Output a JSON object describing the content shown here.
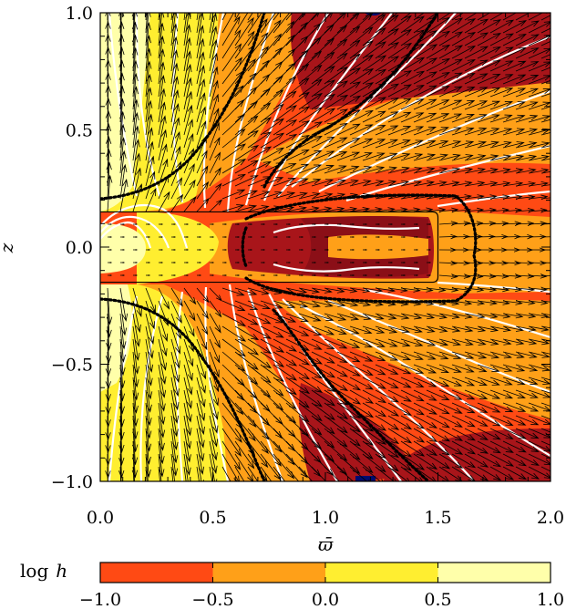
{
  "chart_data": {
    "type": "heatmap",
    "title": "",
    "xlabel": "ϖ̄",
    "ylabel": "z",
    "xlim": [
      0.0,
      2.0
    ],
    "ylim": [
      -1.0,
      1.0
    ],
    "x_ticks": [
      "0.0",
      "0.5",
      "1.0",
      "1.5",
      "2.0"
    ],
    "y_ticks": [
      "−1.0",
      "−0.5",
      "0.0",
      "0.5",
      "1.0"
    ],
    "x_tick_values": [
      0.0,
      0.5,
      1.0,
      1.5,
      2.0
    ],
    "y_tick_values": [
      -1.0,
      -0.5,
      0.0,
      0.5,
      1.0
    ],
    "colorbar": {
      "title": "log",
      "title_var": "h",
      "tick_values": [
        -1.0,
        -0.5,
        0.0,
        0.5,
        1.0
      ],
      "tick_labels": [
        "−1.0",
        "−0.5",
        "0.0",
        "0.5",
        "1.0"
      ],
      "level_colors": [
        "#ff4a14",
        "#ffa018",
        "#ffee30",
        "#ffffaa"
      ]
    },
    "extra_colors": {
      "below_range": "#a8151a",
      "deep": "#8b0f17",
      "dark": "#000b6e"
    },
    "disk_box": {
      "x": [
        0.0,
        1.5
      ],
      "z": [
        -0.15,
        0.15
      ]
    }
  }
}
